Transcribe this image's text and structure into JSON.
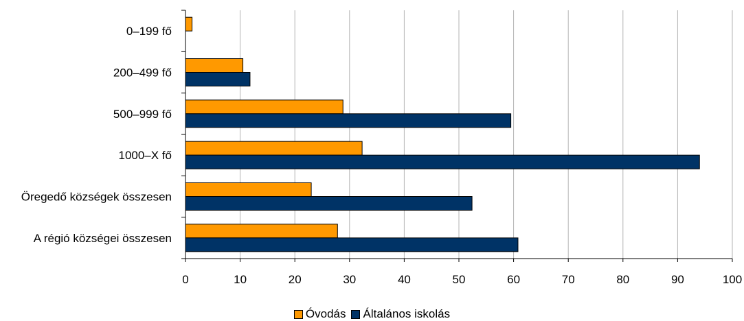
{
  "chart_data": {
    "type": "bar",
    "orientation": "horizontal",
    "categories": [
      "0–199 fő",
      "200–499 fő",
      "500–999 fő",
      "1000–X fő",
      "Öregedő községek összesen",
      "A régió községei összesen"
    ],
    "series": [
      {
        "name": "Óvodás",
        "color": "#ff9900",
        "values": [
          1.2,
          10.5,
          28.8,
          32.3,
          23.0,
          27.8
        ]
      },
      {
        "name": "Általános iskolás",
        "color": "#003366",
        "values": [
          0,
          11.8,
          59.5,
          94.0,
          52.4,
          60.8
        ]
      }
    ],
    "xlim": [
      0,
      100
    ],
    "xticks": [
      "0",
      "10",
      "20",
      "30",
      "40",
      "50",
      "60",
      "70",
      "80",
      "90",
      "100"
    ],
    "grid": true,
    "legend_position": "bottom"
  }
}
